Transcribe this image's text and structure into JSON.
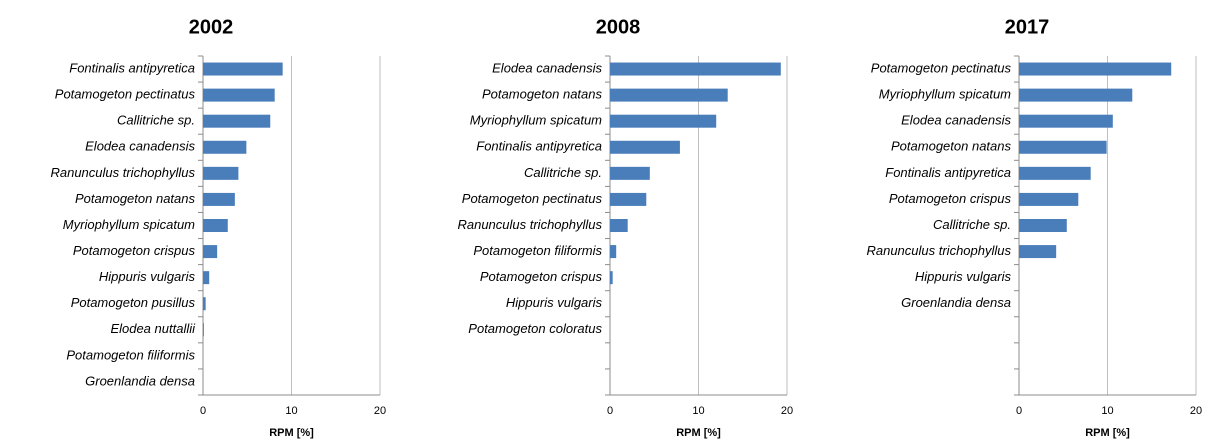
{
  "chart_data": [
    {
      "type": "barh",
      "title": "2002",
      "xlabel": "RPM [%]",
      "color": "#4a7ebb",
      "xlim": [
        0,
        20
      ],
      "xticks": [
        0,
        10,
        20
      ],
      "grid": true,
      "categories": [
        "Fontinalis antipyretica",
        "Potamogeton pectinatus",
        "Callitriche sp.",
        "Elodea canadensis",
        "Ranunculus trichophyllus",
        "Potamogeton natans",
        "Myriophyllum spicatum",
        "Potamogeton crispus",
        "Hippuris vulgaris",
        "Potamogeton pusillus",
        "Elodea nuttallii",
        "Potamogeton filiformis",
        "Groenlandia densa"
      ],
      "values": [
        9.0,
        8.1,
        7.6,
        4.9,
        4.0,
        3.6,
        2.8,
        1.6,
        0.7,
        0.3,
        0.1,
        0,
        0
      ]
    },
    {
      "type": "barh",
      "title": "2008",
      "xlabel": "RPM [%]",
      "color": "#4a7ebb",
      "xlim": [
        0,
        20
      ],
      "xticks": [
        0,
        10,
        20
      ],
      "grid": true,
      "categories": [
        "Elodea canadensis",
        "Potamogeton natans",
        "Myriophyllum spicatum",
        "Fontinalis antipyretica",
        "Callitriche sp.",
        "Potamogeton pectinatus",
        "Ranunculus trichophyllus",
        "Potamogeton filiformis",
        "Potamogeton crispus",
        "Hippuris vulgaris",
        "Potamogeton coloratus",
        null,
        null
      ],
      "values": [
        19.3,
        13.3,
        12.0,
        7.9,
        4.5,
        4.1,
        2.0,
        0.7,
        0.3,
        0,
        0,
        null,
        null
      ]
    },
    {
      "type": "barh",
      "title": "2017",
      "xlabel": "RPM [%]",
      "color": "#4a7ebb",
      "xlim": [
        0,
        20
      ],
      "xticks": [
        0,
        10,
        20
      ],
      "grid": true,
      "categories": [
        "Potamogeton pectinatus",
        "Myriophyllum spicatum",
        "Elodea canadensis",
        "Potamogeton natans",
        "Fontinalis antipyretica",
        "Potamogeton crispus",
        "Callitriche sp.",
        "Ranunculus trichophyllus",
        "Hippuris vulgaris",
        "Groenlandia densa",
        null,
        null,
        null
      ],
      "values": [
        17.2,
        12.8,
        10.6,
        9.9,
        8.1,
        6.7,
        5.4,
        4.2,
        0,
        0,
        null,
        null,
        null
      ]
    }
  ]
}
